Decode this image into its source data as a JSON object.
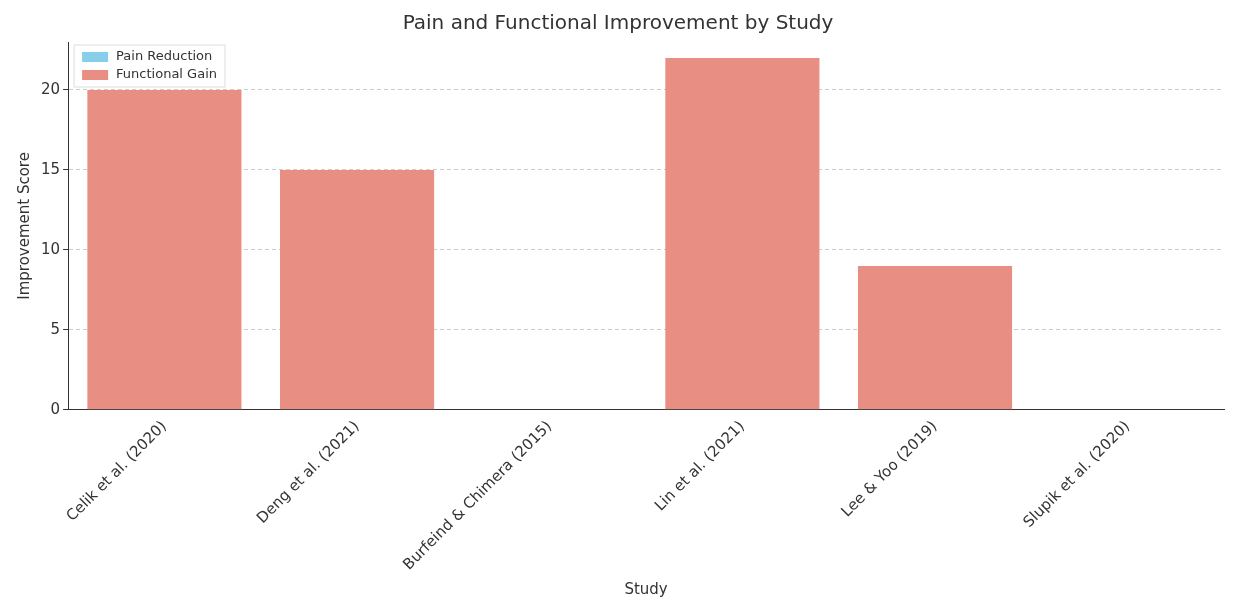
{
  "chart_data": {
    "type": "bar",
    "title": "Pain and Functional Improvement by Study",
    "xlabel": "Study",
    "ylabel": "Improvement Score",
    "categories": [
      "Celik et al. (2020)",
      "Deng et al. (2021)",
      "Burfeind & Chimera (2015)",
      "Lin et al. (2021)",
      "Lee & Yoo (2019)",
      "Slupik et al. (2020)"
    ],
    "series": [
      {
        "name": "Pain Reduction",
        "color": "#87ceeb",
        "values": [
          null,
          null,
          null,
          null,
          null,
          null
        ]
      },
      {
        "name": "Functional Gain",
        "color": "#e98e82",
        "values": [
          20,
          15,
          null,
          22,
          9,
          null
        ]
      }
    ],
    "ylim": [
      0,
      23
    ],
    "yticks": [
      0,
      5,
      10,
      15,
      20
    ],
    "grid": "y",
    "legend": "top left"
  }
}
